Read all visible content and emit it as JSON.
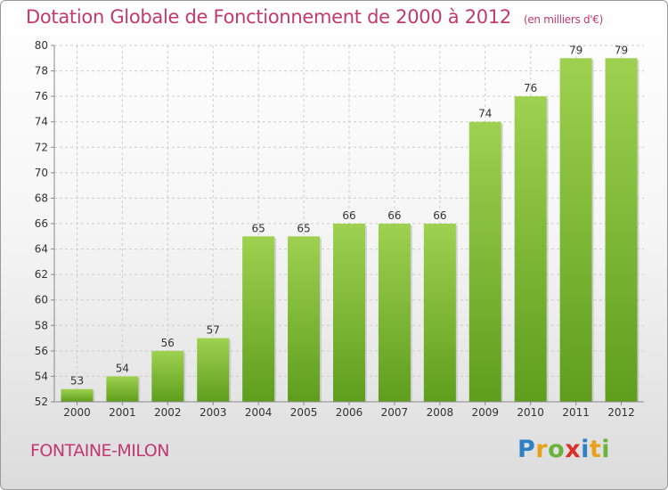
{
  "header": {
    "title": "Dotation Globale de Fonctionnement de 2000 à 2012",
    "unit": "(en milliers d'€)"
  },
  "footer": {
    "commune": "FONTAINE-MILON",
    "logo_letters": [
      "P",
      "r",
      "o",
      "x",
      "i",
      "t",
      "i"
    ],
    "logo_colors": [
      "#2e7fc4",
      "#e8a21a",
      "#6bb33c",
      "#d9312b",
      "#2e7fc4",
      "#e8a21a",
      "#6bb33c"
    ]
  },
  "colors": {
    "bar_top": "#9ed150",
    "bar_bottom": "#5f9e1d",
    "title": "#c23a6b",
    "axis": "#888888",
    "grid": "#cccccc"
  },
  "chart_data": {
    "type": "bar",
    "title": "Dotation Globale de Fonctionnement de 2000 à 2012",
    "subtitle": "(en milliers d'€)",
    "categories": [
      "2000",
      "2001",
      "2002",
      "2003",
      "2004",
      "2005",
      "2006",
      "2007",
      "2008",
      "2009",
      "2010",
      "2011",
      "2012"
    ],
    "values": [
      53,
      54,
      56,
      57,
      65,
      65,
      66,
      66,
      66,
      74,
      76,
      79,
      79
    ],
    "ylim": [
      52,
      80
    ],
    "yticks": [
      52,
      54,
      56,
      58,
      60,
      62,
      64,
      66,
      68,
      70,
      72,
      74,
      76,
      78,
      80
    ],
    "grid": true,
    "data_labels": true,
    "legend": "none"
  }
}
